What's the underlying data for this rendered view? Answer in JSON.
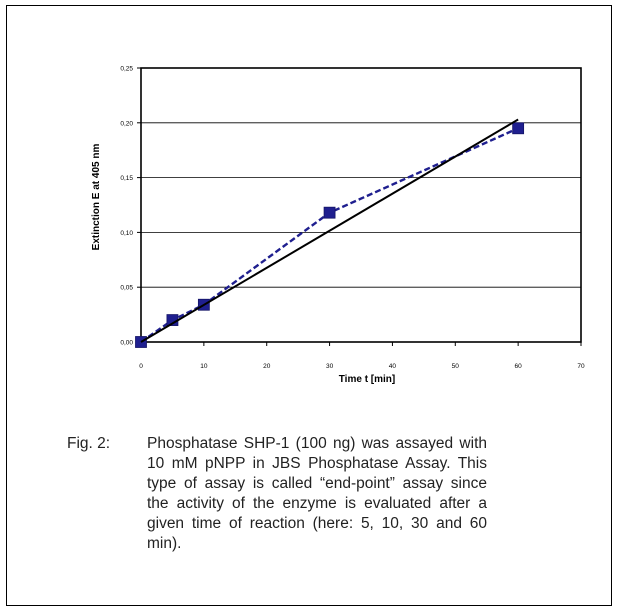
{
  "chart_data": {
    "type": "line",
    "xlabel": "Time t [min]",
    "ylabel": "Extinction E at 405 nm",
    "xlim": [
      0,
      70
    ],
    "ylim": [
      0,
      0.25
    ],
    "xticks": [
      0,
      10,
      20,
      30,
      40,
      50,
      60,
      70
    ],
    "xtick_labels": [
      "0",
      "10",
      "20",
      "30",
      "40",
      "50",
      "60",
      "70"
    ],
    "yticks": [
      0,
      0.05,
      0.1,
      0.15,
      0.2,
      0.25
    ],
    "ytick_labels": [
      "0,00",
      "0,05",
      "0,10",
      "0,15",
      "0,20",
      "0,25"
    ],
    "grid": "horizontal",
    "series": [
      {
        "style": "dashed-with-square-markers",
        "color": "#1f1f8f",
        "x": [
          0,
          5,
          10,
          30,
          60
        ],
        "y": [
          0.0,
          0.02,
          0.034,
          0.118,
          0.195
        ]
      },
      {
        "style": "solid-linear-fit",
        "color": "#000000",
        "x": [
          0,
          60
        ],
        "y": [
          0.0,
          0.203
        ]
      }
    ]
  },
  "caption": {
    "prefix": "Fig. 2:",
    "text": "Phosphatase SHP-1 (100 ng) was assayed with 10 mM pNPP in JBS Phosphatase Assay. This type of assay is called “end-point” assay since the activity of the enzyme is evaluated after a given time of reaction (here: 5, 10, 30 and 60 min)."
  }
}
